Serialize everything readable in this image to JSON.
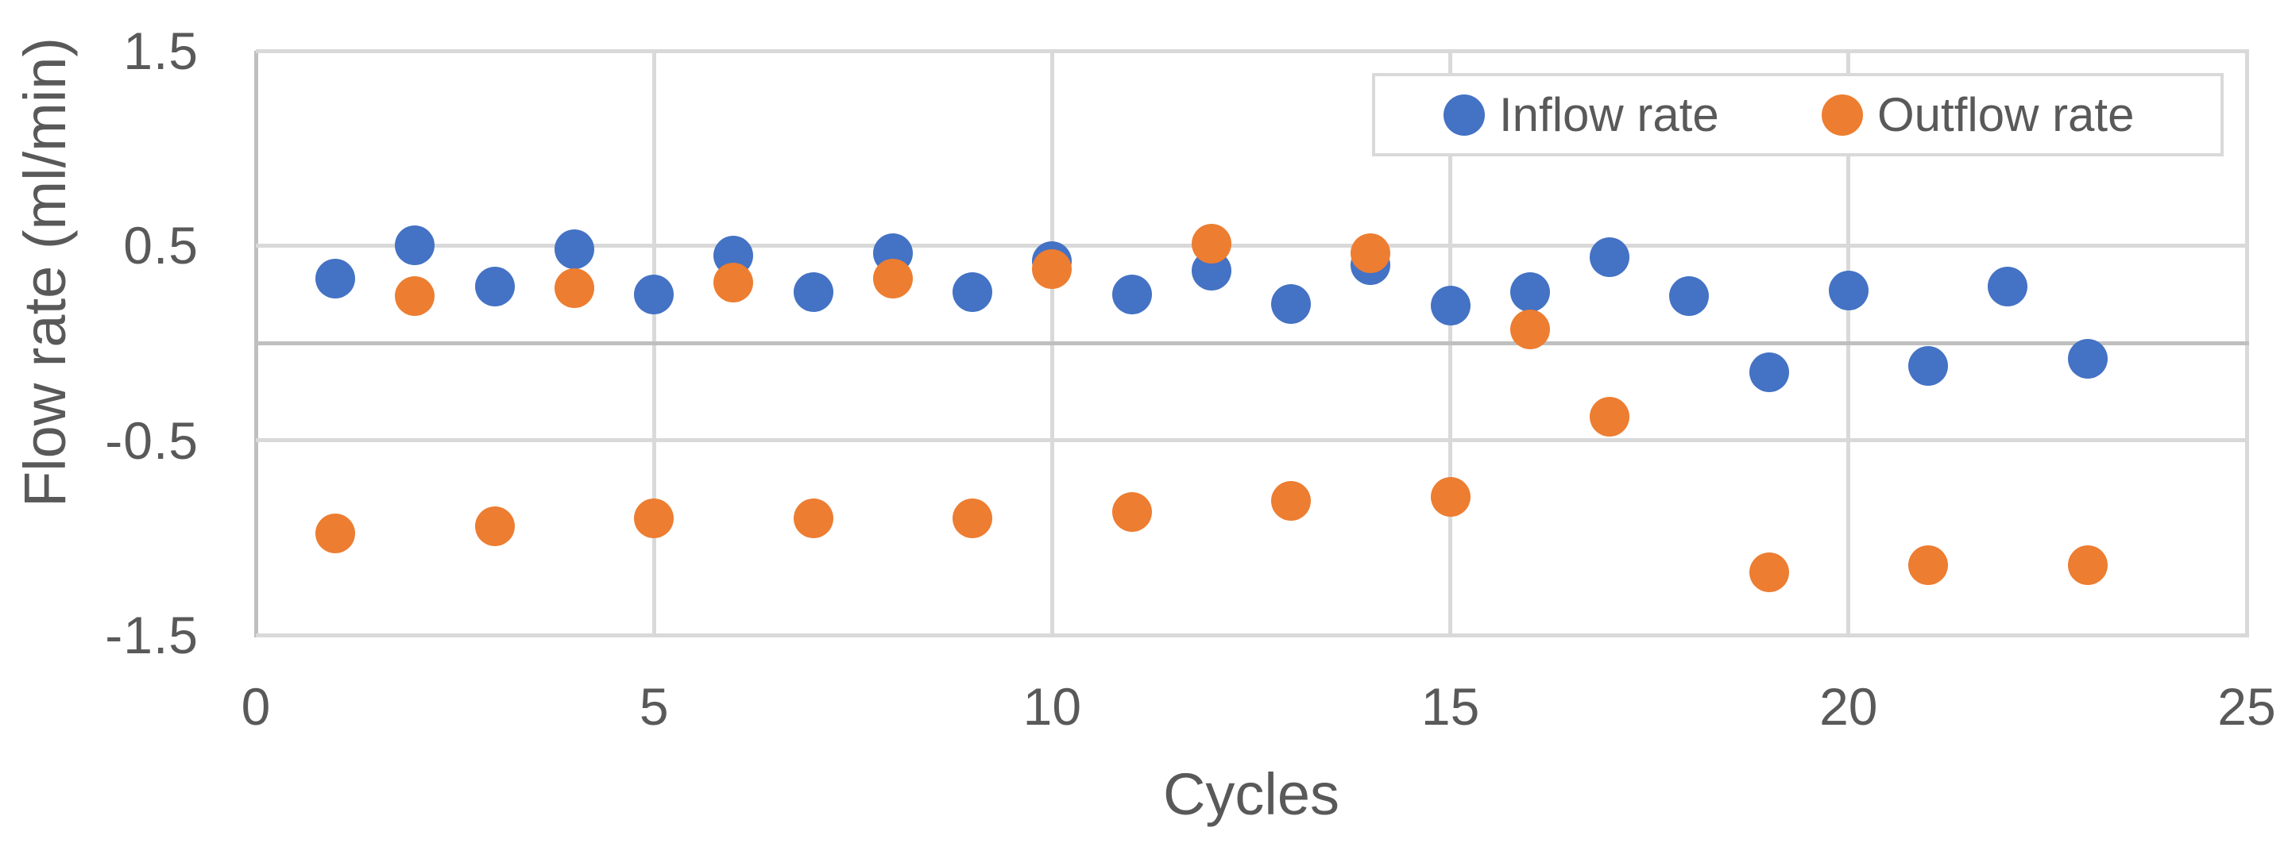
{
  "figure": {
    "background": "#FFFFFF"
  },
  "chart_data": {
    "type": "scatter",
    "title": "",
    "xlabel": "Cycles",
    "ylabel": "Flow rate (ml/min)",
    "xlim": [
      0,
      25
    ],
    "ylim": [
      -1.5,
      1.5
    ],
    "xticks": [
      0,
      5,
      10,
      15,
      20,
      25
    ],
    "yticks": [
      1.5,
      0.5,
      -0.5,
      -1.5
    ],
    "grid": true,
    "legend_position": "top-right-inside",
    "x": [
      1,
      2,
      3,
      4,
      5,
      6,
      7,
      8,
      9,
      10,
      11,
      12,
      13,
      14,
      15,
      16,
      17,
      18,
      19,
      20,
      21,
      22,
      23
    ],
    "series": [
      {
        "name": "Inflow rate",
        "color": "#4472C4",
        "values": [
          0.33,
          0.5,
          0.29,
          0.48,
          0.25,
          0.45,
          0.26,
          0.46,
          0.26,
          0.42,
          0.25,
          0.37,
          0.2,
          0.4,
          0.19,
          0.26,
          0.44,
          0.24,
          -0.15,
          0.27,
          -0.12,
          0.29,
          -0.08
        ]
      },
      {
        "name": "Outflow rate",
        "color": "#ED7D31",
        "values": [
          -0.98,
          0.24,
          -0.94,
          0.28,
          -0.9,
          0.31,
          -0.9,
          0.33,
          -0.9,
          0.38,
          -0.87,
          0.51,
          -0.81,
          0.46,
          -0.79,
          0.07,
          -0.38,
          null,
          -1.18,
          null,
          -1.14,
          null,
          -1.14
        ]
      }
    ]
  },
  "axes": {
    "x": {
      "title": "Cycles",
      "tick_labels": [
        "0",
        "5",
        "10",
        "15",
        "20",
        "25"
      ],
      "tick_values": [
        0,
        5,
        10,
        15,
        20,
        25
      ]
    },
    "y": {
      "title": "Flow rate (ml/min)",
      "tick_labels": [
        "1.5",
        "0.5",
        "-0.5",
        "-1.5"
      ],
      "tick_values": [
        1.5,
        0.5,
        -0.5,
        -1.5
      ]
    }
  },
  "legend": {
    "items": [
      {
        "label": "Inflow rate",
        "color": "#4472C4"
      },
      {
        "label": "Outflow rate",
        "color": "#ED7D31"
      }
    ]
  },
  "colors": {
    "gridline": "#D9D9D9",
    "axis_line": "#BFBFBF",
    "text": "#595959",
    "legend_border": "#D9D9D9",
    "background": "#FFFFFF"
  }
}
